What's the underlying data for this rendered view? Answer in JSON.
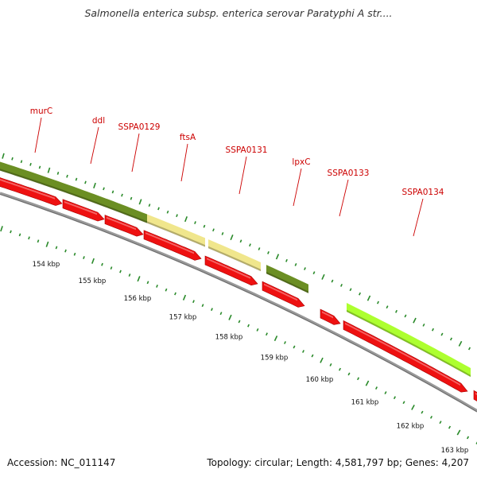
{
  "title": "Salmonella enterica subsp. enterica serovar Paratyphi A str....",
  "footer": {
    "accession": "Accession: NC_011147",
    "topology": "Topology: circular; Length: 4,581,797 bp; Genes: 4,207"
  },
  "colors": {
    "cds_red": "#ee1111",
    "gene_dark_olive": "#6b8e23",
    "gene_khaki": "#f0e68c",
    "gene_lime": "#adff2f",
    "backbone": "#888888",
    "tick_green": "#2a8a2a",
    "label_red": "#cc0000"
  },
  "genes": [
    {
      "name": "murC"
    },
    {
      "name": "ddl"
    },
    {
      "name": "SSPA0129"
    },
    {
      "name": "ftsA"
    },
    {
      "name": "SSPA0131"
    },
    {
      "name": "lpxC"
    },
    {
      "name": "SSPA0133"
    },
    {
      "name": "SSPA0134"
    }
  ],
  "scale_labels": [
    {
      "label": "154 kbp"
    },
    {
      "label": "155 kbp"
    },
    {
      "label": "156 kbp"
    },
    {
      "label": "157 kbp"
    },
    {
      "label": "158 kbp"
    },
    {
      "label": "159 kbp"
    },
    {
      "label": "160 kbp"
    },
    {
      "label": "161 kbp"
    },
    {
      "label": "162 kbp"
    },
    {
      "label": "163 kbp"
    }
  ]
}
